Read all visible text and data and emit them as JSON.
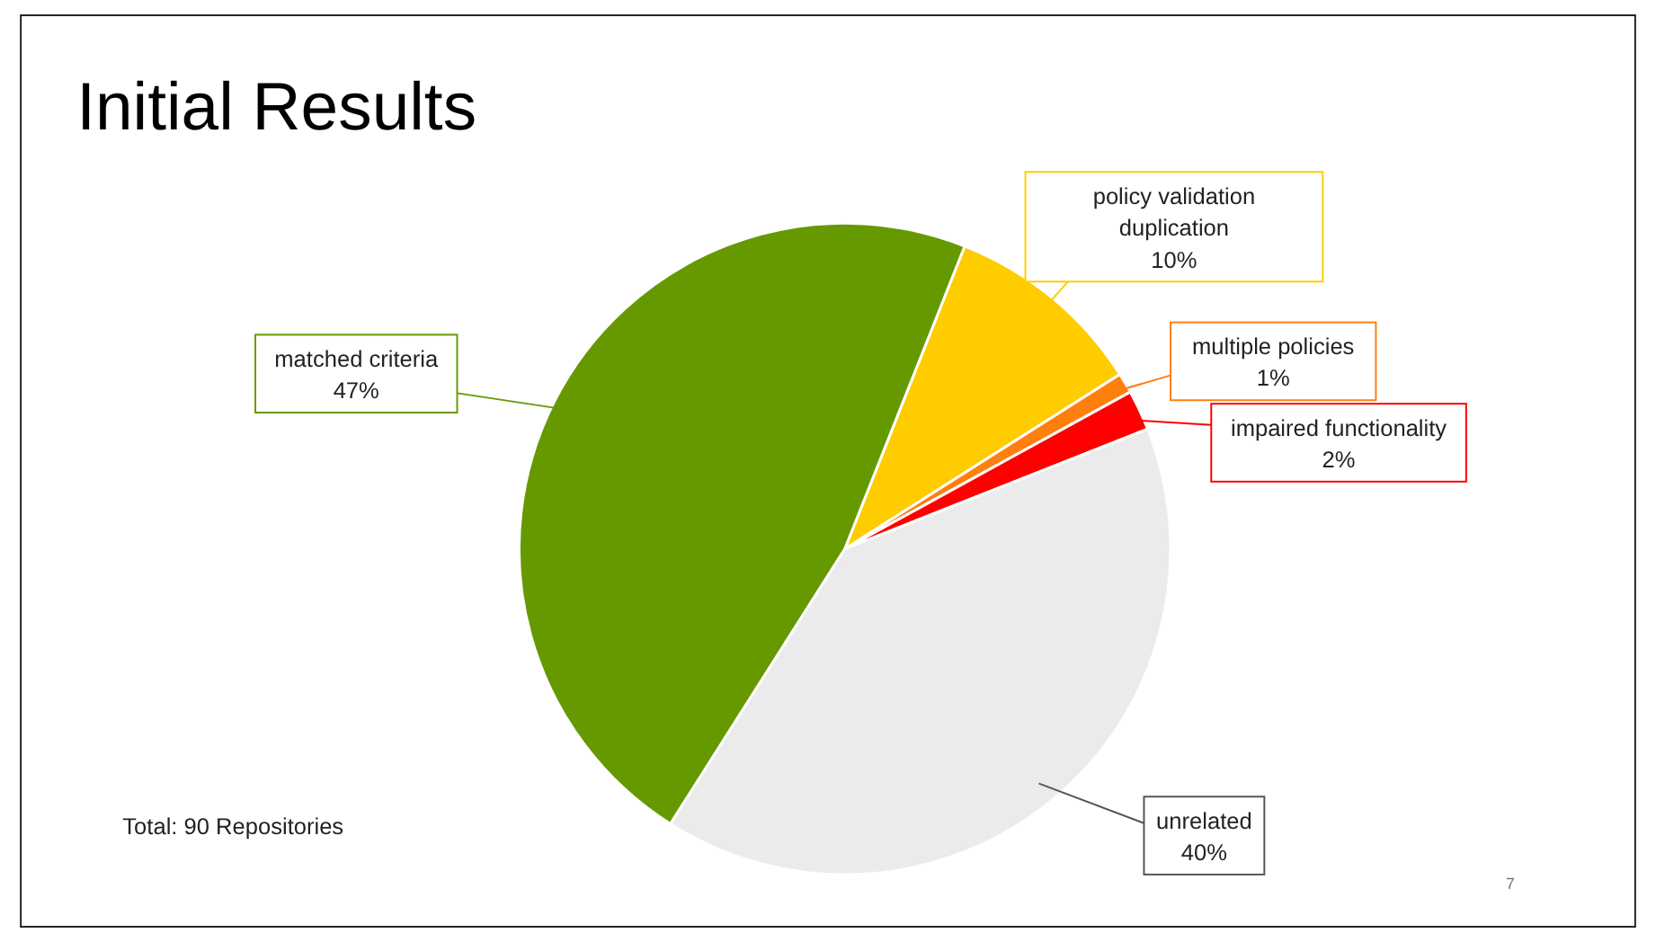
{
  "chart_data": {
    "type": "pie",
    "title": "Initial Results",
    "categories": [
      "policy validation duplication",
      "multiple policies",
      "impaired functionality",
      "unrelated",
      "matched criteria"
    ],
    "values": [
      10,
      1,
      2,
      40,
      47
    ],
    "colors": [
      "#ffcc00",
      "#ff7f0e",
      "#ff0000",
      "#ebebeb",
      "#669900"
    ],
    "value_labels": [
      "10%",
      "1%",
      "2%",
      "40%",
      "47%"
    ],
    "annotations": [
      "Total: 90 Repositories",
      "7"
    ],
    "legend": false
  }
}
